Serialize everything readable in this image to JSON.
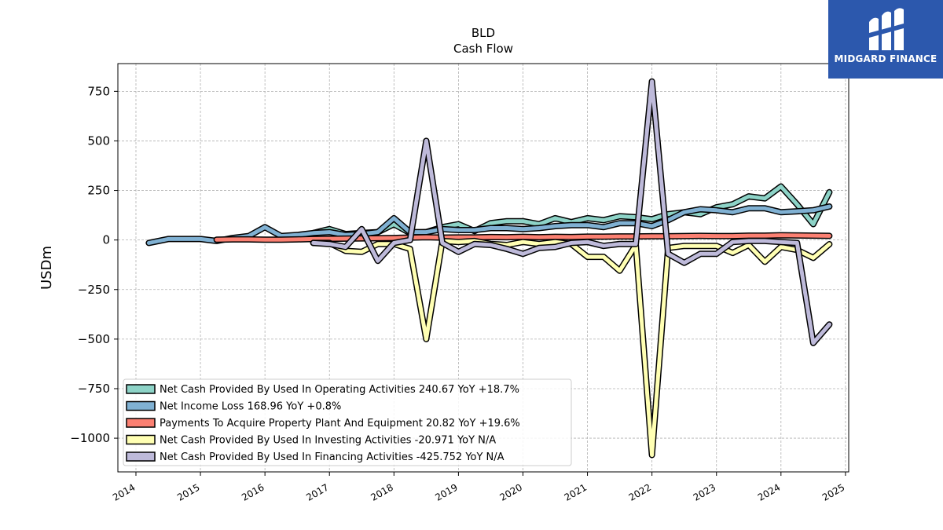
{
  "logo": {
    "text": "MIDGARD FINANCE",
    "background": "#2c58ad"
  },
  "chart_data": {
    "type": "line",
    "title": "BLD",
    "subtitle": "Cash Flow",
    "ylabel": "USDm",
    "xlabel": "",
    "ylim": [
      -1170,
      890
    ],
    "xlim": [
      2013.72,
      2025.05
    ],
    "yticks": [
      750,
      500,
      250,
      0,
      -250,
      -500,
      -750,
      -1000
    ],
    "ytick_labels": [
      "750",
      "500",
      "250",
      "0",
      "−250",
      "−500",
      "−750",
      "−1000"
    ],
    "xticks": [
      2014,
      2015,
      2016,
      2017,
      2018,
      2019,
      2020,
      2021,
      2022,
      2023,
      2024,
      2025
    ],
    "xtick_labels": [
      "2014",
      "2015",
      "2016",
      "2017",
      "2018",
      "2019",
      "2020",
      "2021",
      "2022",
      "2023",
      "2024",
      "2025"
    ],
    "grid": true,
    "legend_position": "lower-left",
    "series": [
      {
        "name": "Net Cash Provided By Used In Operating Activities",
        "legend": "Net Cash Provided By Used In Operating Activities  240.67 YoY +18.7%",
        "color": "#8dd3c7",
        "x": [
          2016.75,
          2017.0,
          2017.25,
          2017.5,
          2017.75,
          2018.0,
          2018.25,
          2018.5,
          2018.75,
          2019.0,
          2019.25,
          2019.5,
          2019.75,
          2020.0,
          2020.25,
          2020.5,
          2020.75,
          2021.0,
          2021.25,
          2021.5,
          2021.75,
          2022.0,
          2022.25,
          2022.5,
          2022.75,
          2023.0,
          2023.25,
          2023.5,
          2023.75,
          2024.0,
          2024.25,
          2024.5,
          2024.75
        ],
        "y": [
          35,
          55,
          30,
          35,
          40,
          80,
          35,
          40,
          65,
          80,
          45,
          85,
          95,
          95,
          80,
          110,
          90,
          110,
          100,
          120,
          115,
          105,
          130,
          140,
          130,
          165,
          180,
          220,
          210,
          270,
          180,
          80,
          241
        ]
      },
      {
        "name": "Net Income Loss",
        "legend": "Net Income Loss  168.96 YoY +0.8%",
        "color": "#80b1d3",
        "x": [
          2014.2,
          2014.5,
          2014.75,
          2015.0,
          2015.25,
          2015.5,
          2015.75,
          2016.0,
          2016.25,
          2016.5,
          2016.75,
          2017.0,
          2017.25,
          2017.5,
          2017.75,
          2018.0,
          2018.25,
          2018.5,
          2018.75,
          2019.0,
          2019.25,
          2019.5,
          2019.75,
          2020.0,
          2020.25,
          2020.5,
          2020.75,
          2021.0,
          2021.25,
          2021.5,
          2021.75,
          2022.0,
          2022.25,
          2022.5,
          2022.75,
          2023.0,
          2023.25,
          2023.5,
          2023.75,
          2024.0,
          2024.25,
          2024.5,
          2024.75
        ],
        "y": [
          -15,
          5,
          5,
          5,
          -5,
          10,
          20,
          65,
          20,
          25,
          35,
          40,
          25,
          30,
          40,
          110,
          40,
          40,
          55,
          50,
          50,
          60,
          60,
          55,
          60,
          70,
          75,
          75,
          65,
          85,
          85,
          70,
          100,
          140,
          155,
          150,
          140,
          160,
          160,
          140,
          145,
          150,
          169
        ]
      },
      {
        "name": "Payments To Acquire Property Plant And Equipment",
        "legend": "Payments To Acquire Property Plant And Equipment  20.82 YoY +19.6%",
        "color": "#fb8072",
        "x": [
          2015.25,
          2015.5,
          2015.75,
          2016.0,
          2016.25,
          2016.5,
          2016.75,
          2017.0,
          2017.25,
          2017.5,
          2017.75,
          2018.0,
          2018.25,
          2018.5,
          2018.75,
          2019.0,
          2019.25,
          2019.5,
          2019.75,
          2020.0,
          2020.25,
          2020.5,
          2020.75,
          2021.0,
          2021.25,
          2021.5,
          2021.75,
          2022.0,
          2022.25,
          2022.5,
          2022.75,
          2023.0,
          2023.25,
          2023.5,
          2023.75,
          2024.0,
          2024.25,
          2024.5,
          2024.75
        ],
        "y": [
          2,
          3,
          3,
          2,
          2,
          3,
          5,
          6,
          7,
          8,
          9,
          10,
          12,
          14,
          12,
          13,
          13,
          15,
          14,
          16,
          14,
          16,
          15,
          17,
          17,
          18,
          18,
          19,
          19,
          20,
          21,
          20,
          20,
          22,
          22,
          24,
          23,
          22,
          21
        ]
      },
      {
        "name": "Net Cash Provided By Used In Investing Activities",
        "legend": "Net Cash Provided By Used In Investing Activities  -20.971 YoY N/A",
        "color": "#ffffb3",
        "x": [
          2016.75,
          2017.0,
          2017.25,
          2017.5,
          2017.75,
          2018.0,
          2018.25,
          2018.5,
          2018.75,
          2019.0,
          2019.25,
          2019.5,
          2019.75,
          2020.0,
          2020.25,
          2020.5,
          2020.75,
          2021.0,
          2021.25,
          2021.5,
          2021.75,
          2022.0,
          2022.25,
          2022.5,
          2022.75,
          2023.0,
          2023.25,
          2023.5,
          2023.75,
          2024.0,
          2024.25,
          2024.5,
          2024.75
        ],
        "y": [
          -15,
          -15,
          -55,
          -60,
          -20,
          -20,
          -45,
          -500,
          -5,
          -10,
          -5,
          -20,
          -25,
          -10,
          -20,
          -10,
          -20,
          -85,
          -85,
          -155,
          -25,
          -1085,
          -40,
          -30,
          -30,
          -30,
          -65,
          -25,
          -110,
          -35,
          -50,
          -90,
          -21
        ]
      },
      {
        "name": "Net Cash Provided By Used In Financing Activities",
        "legend": "Net Cash Provided By Used In Financing Activities  -425.752 YoY N/A",
        "color": "#bebada",
        "x": [
          2016.75,
          2017.0,
          2017.25,
          2017.5,
          2017.75,
          2018.0,
          2018.25,
          2018.5,
          2018.75,
          2019.0,
          2019.25,
          2019.5,
          2019.75,
          2020.0,
          2020.25,
          2020.5,
          2020.75,
          2021.0,
          2021.25,
          2021.5,
          2021.75,
          2022.0,
          2022.25,
          2022.5,
          2022.75,
          2023.0,
          2023.25,
          2023.5,
          2023.75,
          2024.0,
          2024.25,
          2024.5,
          2024.75
        ],
        "y": [
          -15,
          -20,
          -35,
          55,
          -105,
          -15,
          0,
          500,
          -15,
          -60,
          -20,
          -25,
          -45,
          -70,
          -40,
          -35,
          -15,
          -10,
          -30,
          -20,
          -20,
          800,
          -70,
          -115,
          -70,
          -70,
          -10,
          -5,
          -5,
          -10,
          -15,
          -520,
          -426
        ]
      }
    ]
  }
}
